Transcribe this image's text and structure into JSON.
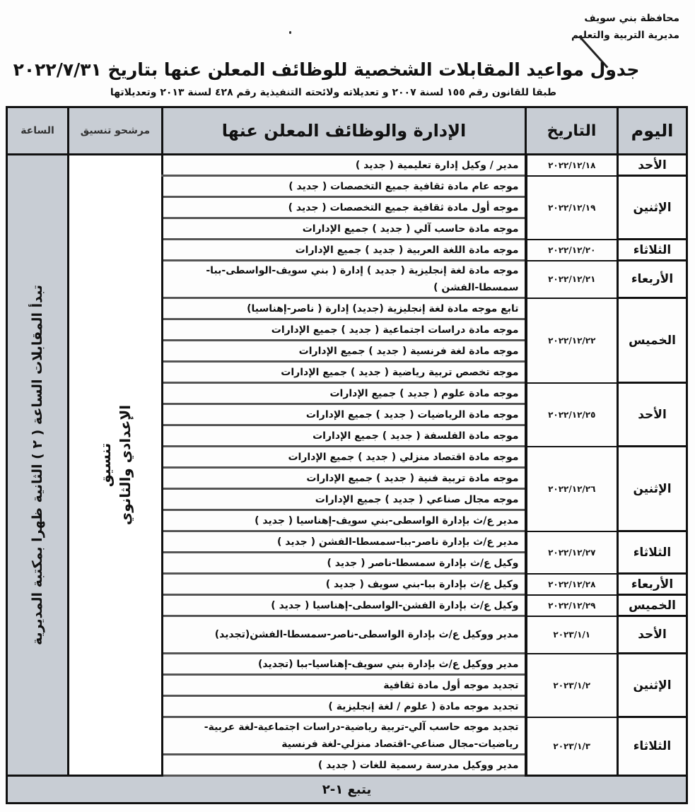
{
  "header": {
    "governorate": "محافظة بني سويف",
    "directorate": "مديرية التربية والتعليم",
    "title": "جدول مواعيد المقابلات الشخصية للوظائف المعلن عنها بتاريخ ٢٠٢٢/٧/٣١",
    "subtitle": "طبقا للقانون رقم ١٥٥ لسنة ٢٠٠٧ و تعديلاته ولائحته التنفيذية رقم ٤٢٨ لسنة ٢٠١٣ وتعديلاتها"
  },
  "table": {
    "columns": {
      "day": "اليوم",
      "date": "التاريخ",
      "jobs": "الإدارة والوظائف المعلن عنها",
      "coord": "مرشحو تنسيق",
      "hour": "الساعة"
    },
    "coord_value": [
      "تنسيق",
      "الإعدادي والثانوي"
    ],
    "hour_value": "تبدأ المقابلات الساعة ( ٢ ) الثانية ظهرا بمكتبة المديرية",
    "footer": "يتبع ١-٢",
    "groups": [
      {
        "day": "الأحد",
        "date": "٢٠٢٢/١٢/١٨",
        "jobs": [
          "مدير / وكيل إدارة تعليمية ( جديد )"
        ]
      },
      {
        "day": "الإثنين",
        "date": "٢٠٢٢/١٢/١٩",
        "jobs": [
          "موجه عام مادة ثقافية جميع التخصصات ( جديد )",
          "موجه أول مادة ثقافية جميع التخصصات ( جديد )",
          "موجه مادة حاسب آلي ( جديد ) جميع الإدارات"
        ]
      },
      {
        "day": "الثلاثاء",
        "date": "٢٠٢٢/١٢/٢٠",
        "jobs": [
          "موجه مادة اللغة العربية ( جديد ) جميع الإدارات"
        ]
      },
      {
        "day": "الأربعاء",
        "date": "٢٠٢٢/١٢/٢١",
        "jobs": [
          "موجه مادة لغة إنجليزية ( جديد ) إدارة ( بني سويف-الواسطى-ببا- سمسطا-الفشن )"
        ]
      },
      {
        "day": "الخميس",
        "date": "٢٠٢٢/١٢/٢٢",
        "jobs": [
          "تابع موجه مادة لغة إنجليزية (جديد) إدارة ( ناصر-إهناسيا)",
          "موجه مادة دراسات اجتماعية ( جديد ) جميع الإدارات",
          "موجه مادة لغة فرنسية ( جديد ) جميع الإدارات",
          "موجه تخصص تربية رياضية ( جديد ) جميع الإدارات"
        ]
      },
      {
        "day": "الأحد",
        "date": "٢٠٢٢/١٢/٢٥",
        "jobs": [
          "موجه مادة علوم ( جديد ) جميع الإدارات",
          "موجه مادة الرياضيات ( جديد ) جميع الإدارات",
          "موجه مادة الفلسفة ( جديد ) جميع الإدارات"
        ]
      },
      {
        "day": "الإثنين",
        "date": "٢٠٢٢/١٢/٢٦",
        "jobs": [
          "موجه مادة اقتصاد منزلي ( جديد ) جميع الإدارات",
          "موجه مادة تربية فنية ( جديد ) جميع الإدارات",
          "موجه مجال صناعي ( جديد ) جميع الإدارات",
          "مدير ع/ث بإدارة الواسطى-بني سويف-إهناسيا ( جديد )"
        ]
      },
      {
        "day": "الثلاثاء",
        "date": "٢٠٢٢/١٢/٢٧",
        "jobs": [
          "مدير ع/ث بإدارة ناصر-ببا-سمسطا-الفشن ( جديد )",
          "وكيل ع/ث بإدارة سمسطا-ناصر ( جديد )"
        ]
      },
      {
        "day": "الأربعاء",
        "date": "٢٠٢٢/١٢/٢٨",
        "jobs": [
          "وكيل ع/ث بإدارة ببا-بني سويف ( جديد )"
        ]
      },
      {
        "day": "الخميس",
        "date": "٢٠٢٢/١٢/٢٩",
        "jobs": [
          "وكيل ع/ث بإدارة الفشن-الواسطى-إهناسيا ( جديد )"
        ]
      },
      {
        "day": "الأحد",
        "date": "٢٠٢٣/١/١",
        "jobs": [
          "مدير ووكيل ع/ث بإدارة الواسطى-ناصر-سمسطا-الفشن(تجديد)"
        ]
      },
      {
        "day": "الإثنين",
        "date": "٢٠٢٣/١/٢",
        "jobs": [
          "مدير ووكيل ع/ث بإدارة بني سويف-إهناسيا-ببا (تجديد)",
          "تجديد موجه أول مادة ثقافية",
          "تجديد موجه مادة ( علوم / لغة إنجليزية )"
        ]
      },
      {
        "day": "الثلاثاء",
        "date": "٢٠٢٣/١/٣",
        "jobs": [
          "تجديد موجه حاسب آلي-تربية رياضية-دراسات اجتماعية-لغة عربية-رياضيات-مجال صناعي-اقتصاد منزلي-لغة فرنسية",
          "مدير ووكيل مدرسة رسمية للغات ( جديد )"
        ]
      }
    ]
  }
}
